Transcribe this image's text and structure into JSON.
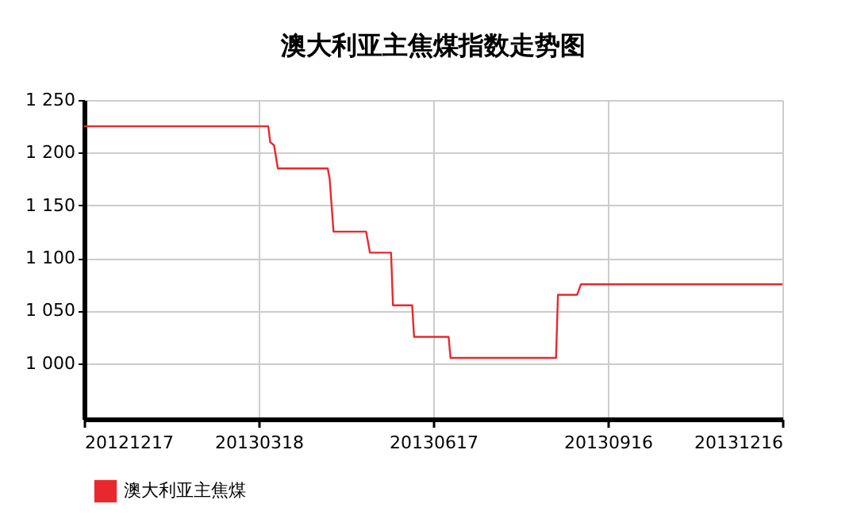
{
  "chart_data": {
    "type": "line",
    "title": "澳大利亚主焦煤指数走势图",
    "x": [
      "2012-12-17",
      "2013-03-23",
      "2013-03-24",
      "2013-03-26",
      "2013-03-28",
      "2013-04-23",
      "2013-04-24",
      "2013-04-26",
      "2013-05-13",
      "2013-05-15",
      "2013-05-26",
      "2013-05-27",
      "2013-06-06",
      "2013-06-07",
      "2013-06-25",
      "2013-06-26",
      "2013-08-20",
      "2013-08-21",
      "2013-08-31",
      "2013-09-02",
      "2013-12-16"
    ],
    "series": [
      {
        "name": "澳大利亚主焦煤",
        "color": "#e8282d",
        "values": [
          1225,
          1225,
          1210,
          1207,
          1185,
          1185,
          1175,
          1125,
          1125,
          1105,
          1105,
          1055,
          1055,
          1025,
          1025,
          1005,
          1005,
          1065,
          1065,
          1075,
          1075
        ]
      }
    ],
    "xlim": [
      "2012-12-17",
      "2013-12-16"
    ],
    "xticks": [
      {
        "value": "2012-12-17",
        "label": "20121217"
      },
      {
        "value": "2013-03-18",
        "label": "20130318"
      },
      {
        "value": "2013-06-17",
        "label": "20130617"
      },
      {
        "value": "2013-09-16",
        "label": "20130916"
      },
      {
        "value": "2013-12-16",
        "label": "20131216"
      }
    ],
    "ylim": [
      947,
      1250
    ],
    "yticks": [
      {
        "value": 1000,
        "label": "1 000"
      },
      {
        "value": 1050,
        "label": "1 050"
      },
      {
        "value": 1100,
        "label": "1 100"
      },
      {
        "value": 1150,
        "label": "1 150"
      },
      {
        "value": 1200,
        "label": "1 200"
      },
      {
        "value": 1250,
        "label": "1 250"
      }
    ],
    "grid": true,
    "legend": "bottom left",
    "marker": "none",
    "line_style": "solid"
  }
}
